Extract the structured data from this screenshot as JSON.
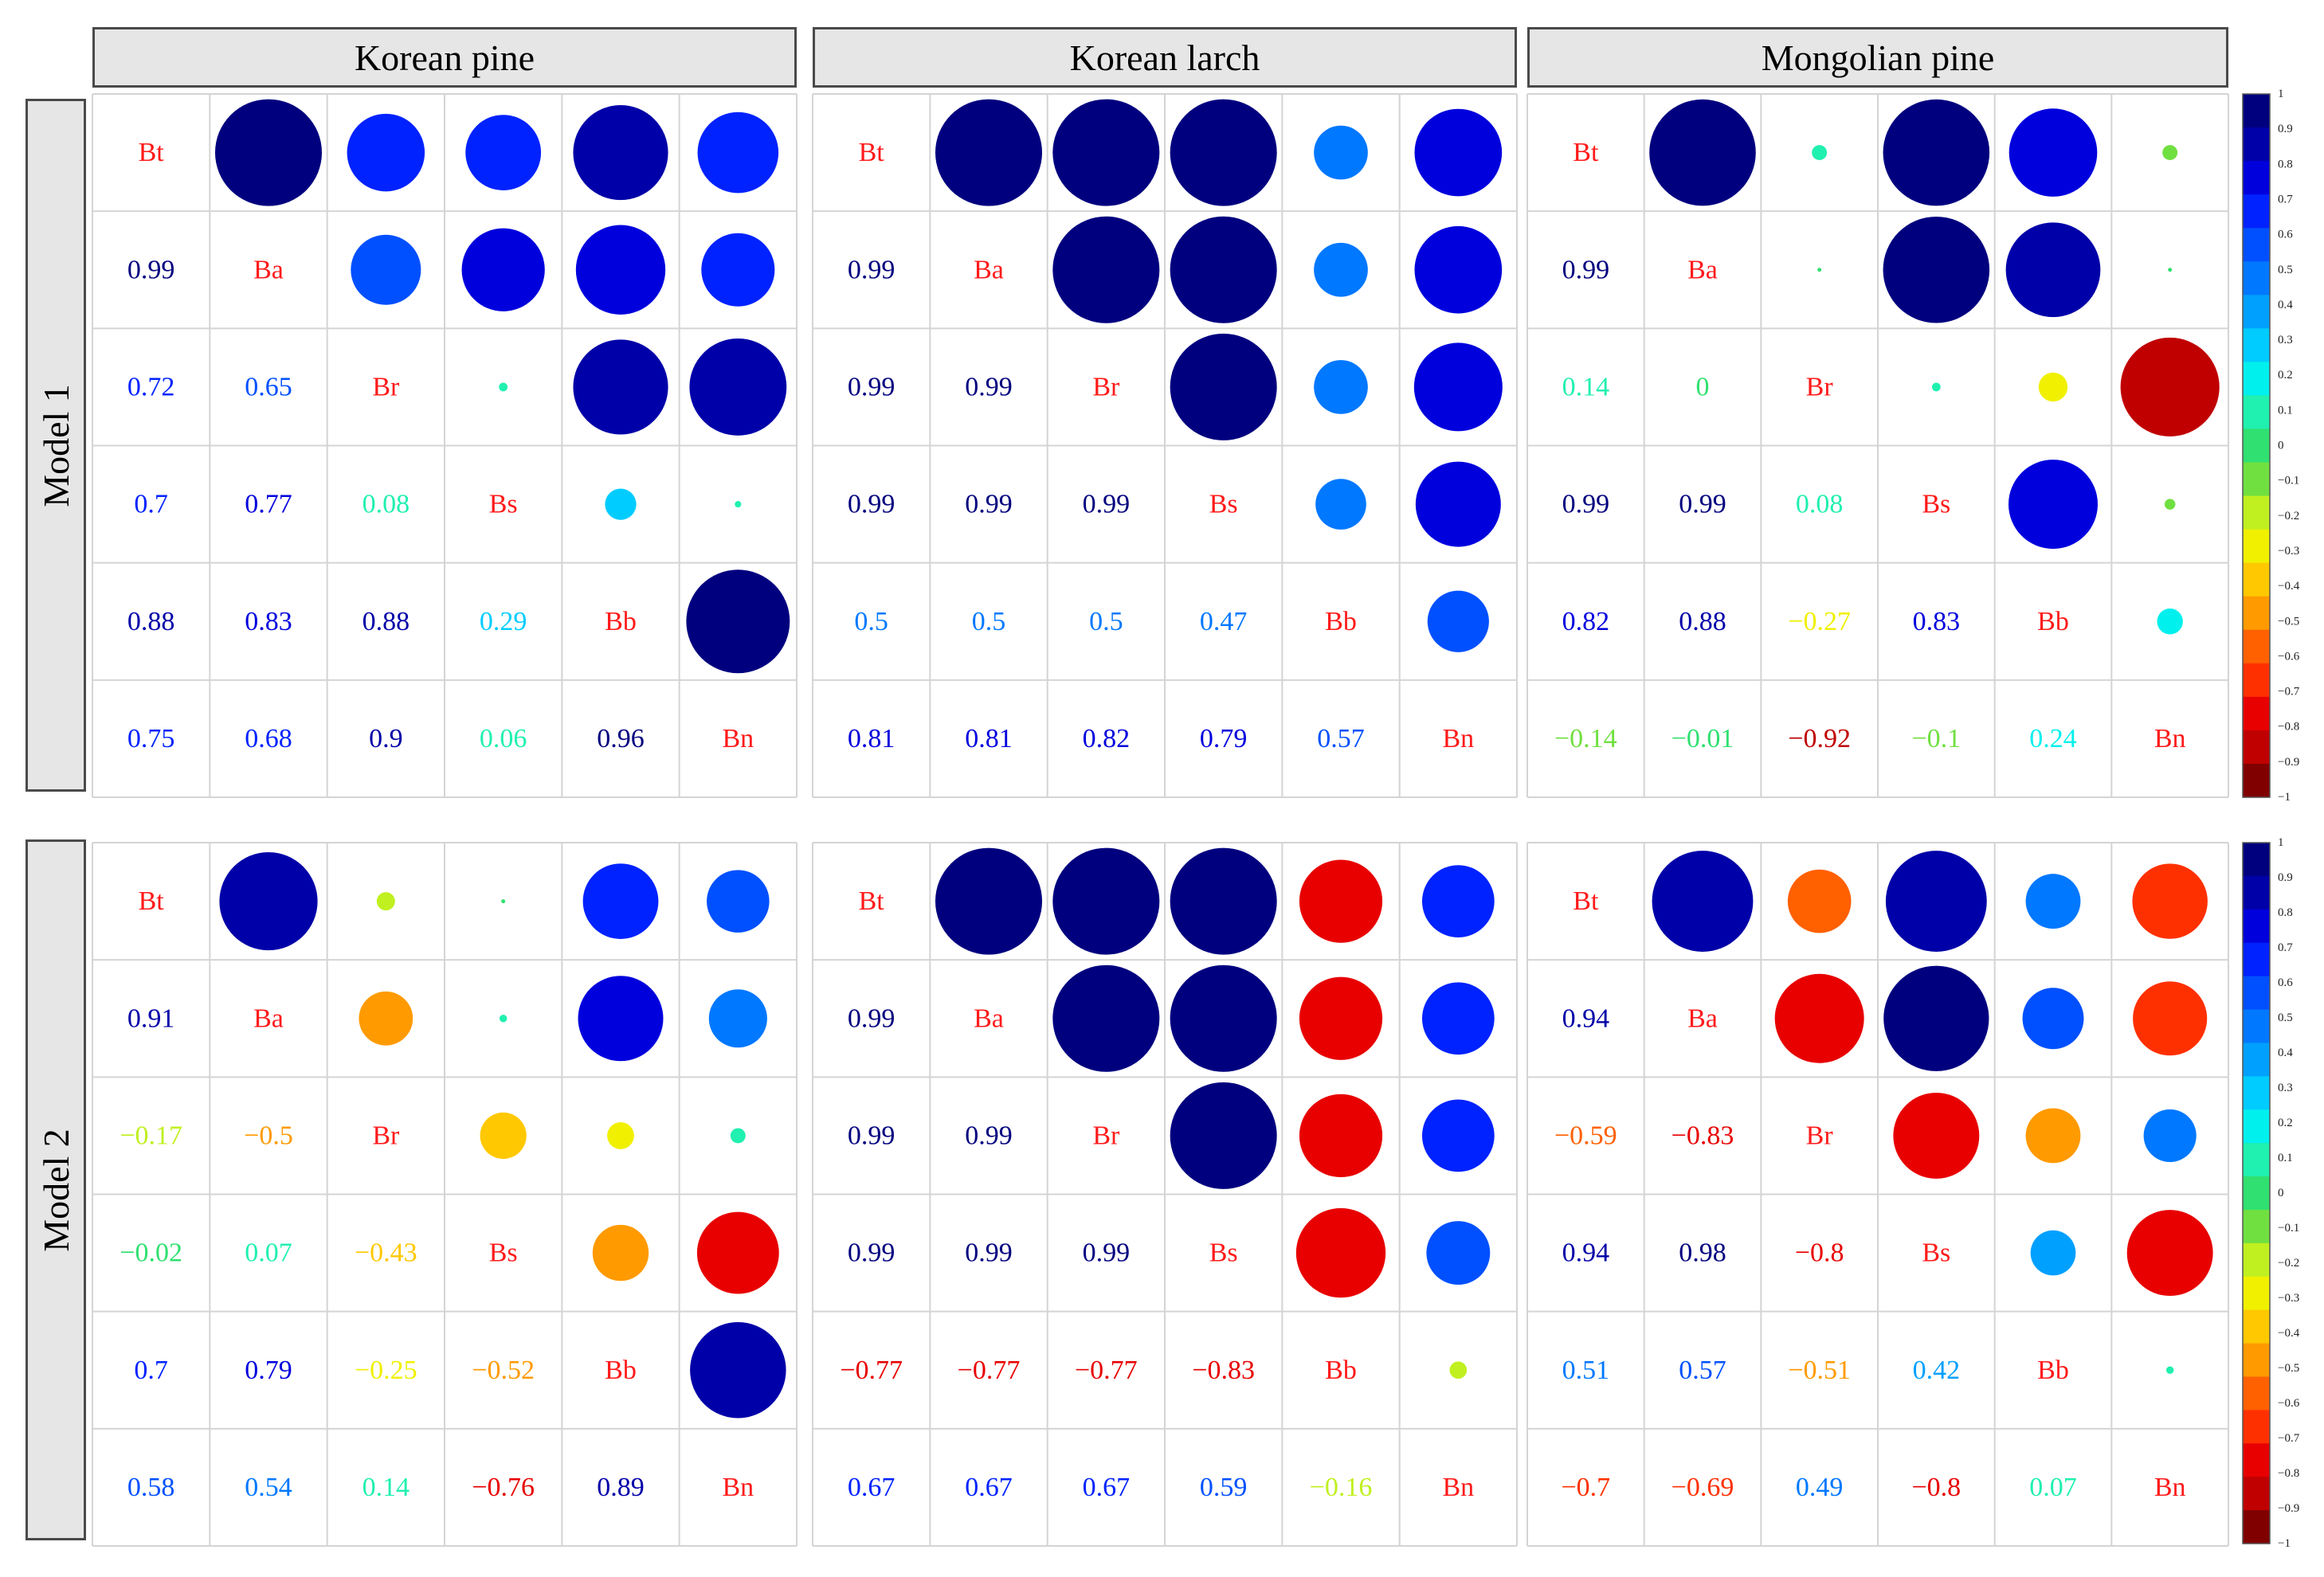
{
  "column_headers": [
    "Korean pine",
    "Korean larch",
    "Mongolian pine"
  ],
  "row_headers": [
    "Model 1",
    "Model 2"
  ],
  "variables": [
    "Bt",
    "Ba",
    "Br",
    "Bs",
    "Bb",
    "Bn"
  ],
  "colorbar": {
    "ticks": [
      "1",
      "0.9",
      "0.8",
      "0.7",
      "0.6",
      "0.5",
      "0.4",
      "0.3",
      "0.2",
      "0.1",
      "0",
      "−0.1",
      "−0.2",
      "−0.3",
      "−0.4",
      "−0.5",
      "−0.6",
      "−0.7",
      "−0.8",
      "−0.9",
      "−1"
    ],
    "colors_top_to_bottom": [
      "#00007f",
      "#0000a8",
      "#0000dd",
      "#0022ff",
      "#0050ff",
      "#0078ff",
      "#00a0ff",
      "#00ccff",
      "#00f0ee",
      "#20f0b0",
      "#30e070",
      "#70e040",
      "#c0f020",
      "#f0f000",
      "#ffc800",
      "#ff9a00",
      "#ff6000",
      "#ff3000",
      "#e80000",
      "#c00000",
      "#800000"
    ]
  },
  "chart_data": {
    "type": "heatmap",
    "subtype": "correlation-matrix (upper: circles, lower: numbers)",
    "panels": [
      {
        "model": "Model 1",
        "species": "Korean pine",
        "matrix": [
          [
            1,
            0.99,
            0.72,
            0.7,
            0.88,
            0.75
          ],
          [
            0.99,
            1,
            0.65,
            0.77,
            0.83,
            0.68
          ],
          [
            0.72,
            0.65,
            1,
            0.08,
            0.88,
            0.9
          ],
          [
            0.7,
            0.77,
            0.08,
            1,
            0.29,
            0.06
          ],
          [
            0.88,
            0.83,
            0.88,
            0.29,
            1,
            0.96
          ],
          [
            0.75,
            0.68,
            0.9,
            0.06,
            0.96,
            1
          ]
        ],
        "lower_labels": [
          [
            "",
            "",
            "",
            "",
            "",
            ""
          ],
          [
            "0.99",
            "",
            "",
            "",
            "",
            ""
          ],
          [
            "0.72",
            "0.65",
            "",
            "",
            "",
            ""
          ],
          [
            "0.7",
            "0.77",
            "0.08",
            "",
            "",
            ""
          ],
          [
            "0.88",
            "0.83",
            "0.88",
            "0.29",
            "",
            ""
          ],
          [
            "0.75",
            "0.68",
            "0.9",
            "0.06",
            "0.96",
            ""
          ]
        ]
      },
      {
        "model": "Model 1",
        "species": "Korean larch",
        "matrix": [
          [
            1,
            0.99,
            0.99,
            0.99,
            0.5,
            0.81
          ],
          [
            0.99,
            1,
            0.99,
            0.99,
            0.5,
            0.81
          ],
          [
            0.99,
            0.99,
            1,
            0.99,
            0.5,
            0.82
          ],
          [
            0.99,
            0.99,
            0.99,
            1,
            0.47,
            0.79
          ],
          [
            0.5,
            0.5,
            0.5,
            0.47,
            1,
            0.57
          ],
          [
            0.81,
            0.81,
            0.82,
            0.79,
            0.57,
            1
          ]
        ],
        "lower_labels": [
          [
            "",
            "",
            "",
            "",
            "",
            ""
          ],
          [
            "0.99",
            "",
            "",
            "",
            "",
            ""
          ],
          [
            "0.99",
            "0.99",
            "",
            "",
            "",
            ""
          ],
          [
            "0.99",
            "0.99",
            "0.99",
            "",
            "",
            ""
          ],
          [
            "0.5",
            "0.5",
            "0.5",
            "0.47",
            "",
            ""
          ],
          [
            "0.81",
            "0.81",
            "0.82",
            "0.79",
            "0.57",
            ""
          ]
        ]
      },
      {
        "model": "Model 1",
        "species": "Mongolian pine",
        "matrix": [
          [
            1,
            0.99,
            0.14,
            0.99,
            0.82,
            -0.14
          ],
          [
            0.99,
            1,
            0,
            0.99,
            0.88,
            -0.01
          ],
          [
            0.14,
            0,
            1,
            0.08,
            -0.27,
            -0.92
          ],
          [
            0.99,
            0.99,
            0.08,
            1,
            0.83,
            -0.1
          ],
          [
            0.82,
            0.88,
            -0.27,
            0.83,
            1,
            0.24
          ],
          [
            -0.14,
            -0.01,
            -0.92,
            -0.1,
            0.24,
            1
          ]
        ],
        "lower_labels": [
          [
            "",
            "",
            "",
            "",
            "",
            ""
          ],
          [
            "0.99",
            "",
            "",
            "",
            "",
            ""
          ],
          [
            "0.14",
            "0",
            "",
            "",
            "",
            ""
          ],
          [
            "0.99",
            "0.99",
            "0.08",
            "",
            "",
            ""
          ],
          [
            "0.82",
            "0.88",
            "−0.27",
            "0.83",
            "",
            ""
          ],
          [
            "−0.14",
            "−0.01",
            "−0.92",
            "−0.1",
            "0.24",
            ""
          ]
        ]
      },
      {
        "model": "Model 2",
        "species": "Korean pine",
        "matrix": [
          [
            1,
            0.91,
            -0.17,
            -0.02,
            0.7,
            0.58
          ],
          [
            0.91,
            1,
            -0.5,
            0.07,
            0.79,
            0.54
          ],
          [
            -0.17,
            -0.5,
            1,
            -0.43,
            -0.25,
            0.14
          ],
          [
            -0.02,
            0.07,
            -0.43,
            1,
            -0.52,
            -0.76
          ],
          [
            0.7,
            0.79,
            -0.25,
            -0.52,
            1,
            0.89
          ],
          [
            0.58,
            0.54,
            0.14,
            -0.76,
            0.89,
            1
          ]
        ],
        "lower_labels": [
          [
            "",
            "",
            "",
            "",
            "",
            ""
          ],
          [
            "0.91",
            "",
            "",
            "",
            "",
            ""
          ],
          [
            "−0.17",
            "−0.5",
            "",
            "",
            "",
            ""
          ],
          [
            "−0.02",
            "0.07",
            "−0.43",
            "",
            "",
            ""
          ],
          [
            "0.7",
            "0.79",
            "−0.25",
            "−0.52",
            "",
            ""
          ],
          [
            "0.58",
            "0.54",
            "0.14",
            "−0.76",
            "0.89",
            ""
          ]
        ]
      },
      {
        "model": "Model 2",
        "species": "Korean larch",
        "matrix": [
          [
            1,
            0.99,
            0.99,
            0.99,
            -0.77,
            0.67
          ],
          [
            0.99,
            1,
            0.99,
            0.99,
            -0.77,
            0.67
          ],
          [
            0.99,
            0.99,
            1,
            0.99,
            -0.77,
            0.67
          ],
          [
            0.99,
            0.99,
            0.99,
            1,
            -0.83,
            0.59
          ],
          [
            -0.77,
            -0.77,
            -0.77,
            -0.83,
            1,
            -0.16
          ],
          [
            0.67,
            0.67,
            0.67,
            0.59,
            -0.16,
            1
          ]
        ],
        "lower_labels": [
          [
            "",
            "",
            "",
            "",
            "",
            ""
          ],
          [
            "0.99",
            "",
            "",
            "",
            "",
            ""
          ],
          [
            "0.99",
            "0.99",
            "",
            "",
            "",
            ""
          ],
          [
            "0.99",
            "0.99",
            "0.99",
            "",
            "",
            ""
          ],
          [
            "−0.77",
            "−0.77",
            "−0.77",
            "−0.83",
            "",
            ""
          ],
          [
            "0.67",
            "0.67",
            "0.67",
            "0.59",
            "−0.16",
            ""
          ]
        ]
      },
      {
        "model": "Model 2",
        "species": "Mongolian pine",
        "matrix": [
          [
            1,
            0.94,
            -0.59,
            0.94,
            0.51,
            -0.7
          ],
          [
            0.94,
            1,
            -0.83,
            0.98,
            0.57,
            -0.69
          ],
          [
            -0.59,
            -0.83,
            1,
            -0.8,
            -0.51,
            0.49
          ],
          [
            0.94,
            0.98,
            -0.8,
            1,
            0.42,
            -0.8
          ],
          [
            0.51,
            0.57,
            -0.51,
            0.42,
            1,
            0.07
          ],
          [
            -0.7,
            -0.69,
            0.49,
            -0.8,
            0.07,
            1
          ]
        ],
        "lower_labels": [
          [
            "",
            "",
            "",
            "",
            "",
            ""
          ],
          [
            "0.94",
            "",
            "",
            "",
            "",
            ""
          ],
          [
            "−0.59",
            "−0.83",
            "",
            "",
            "",
            ""
          ],
          [
            "0.94",
            "0.98",
            "−0.8",
            "",
            "",
            ""
          ],
          [
            "0.51",
            "0.57",
            "−0.51",
            "0.42",
            "",
            ""
          ],
          [
            "−0.7",
            "−0.69",
            "0.49",
            "−0.8",
            "0.07",
            ""
          ]
        ]
      }
    ],
    "color_range": [
      -1,
      1
    ],
    "legend": "right colorbar"
  }
}
